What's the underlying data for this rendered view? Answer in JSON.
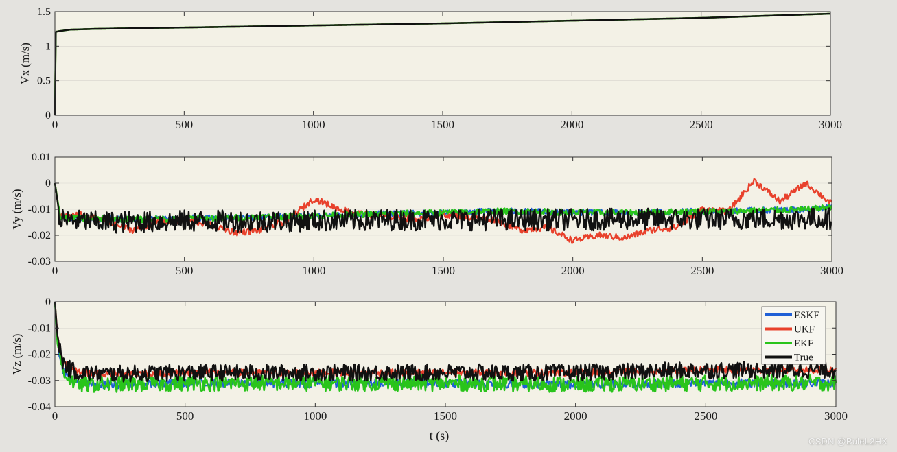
{
  "xlabel": "t (s)",
  "colors": {
    "background": "#e4e3df",
    "axes_face": "#f3f1e6",
    "axis": "#333333",
    "grid": "#d6d4cc",
    "ESKF": "#1f5fd6",
    "UKF": "#e8412c",
    "EKF": "#29c41b",
    "True": "#111111"
  },
  "watermark": "CSDN @BuleL2HX",
  "chart_data": [
    {
      "type": "line",
      "ylabel": "Vx (m/s)",
      "xlim": [
        0,
        3000
      ],
      "ylim": [
        0,
        1.5
      ],
      "xticks": [
        0,
        500,
        1000,
        1500,
        2000,
        2500,
        3000
      ],
      "xtick_labels": [
        "0",
        "500",
        "1000",
        "1500",
        "2000",
        "2500",
        "3000"
      ],
      "yticks": [
        0,
        0.5,
        1,
        1.5
      ],
      "ytick_labels": [
        "0",
        "0.5",
        "1",
        "1.5"
      ],
      "x": [
        0,
        2,
        5,
        20,
        60,
        150,
        300,
        500,
        1000,
        1500,
        2000,
        2500,
        3000
      ],
      "series": [
        {
          "name": "ESKF",
          "values": [
            0,
            1.2,
            1.21,
            1.22,
            1.24,
            1.25,
            1.26,
            1.27,
            1.3,
            1.33,
            1.37,
            1.41,
            1.47
          ]
        },
        {
          "name": "UKF",
          "values": [
            0,
            1.2,
            1.21,
            1.22,
            1.24,
            1.25,
            1.26,
            1.27,
            1.3,
            1.33,
            1.37,
            1.41,
            1.47
          ]
        },
        {
          "name": "EKF",
          "values": [
            0,
            1.2,
            1.21,
            1.22,
            1.24,
            1.25,
            1.26,
            1.27,
            1.3,
            1.33,
            1.37,
            1.41,
            1.47
          ]
        },
        {
          "name": "True",
          "values": [
            0,
            1.2,
            1.21,
            1.22,
            1.24,
            1.25,
            1.26,
            1.27,
            1.3,
            1.33,
            1.37,
            1.41,
            1.47
          ]
        }
      ]
    },
    {
      "type": "line",
      "ylabel": "Vy (m/s)",
      "xlim": [
        0,
        3000
      ],
      "ylim": [
        -0.03,
        0.01
      ],
      "xticks": [
        0,
        500,
        1000,
        1500,
        2000,
        2500,
        3000
      ],
      "xtick_labels": [
        "0",
        "500",
        "1000",
        "1500",
        "2000",
        "2500",
        "3000"
      ],
      "yticks": [
        -0.03,
        -0.02,
        -0.01,
        0,
        0.01
      ],
      "ytick_labels": [
        "-0.03",
        "-0.02",
        "-0.01",
        "0",
        "0.01"
      ],
      "x": [
        0,
        20,
        100,
        200,
        300,
        400,
        500,
        600,
        700,
        800,
        900,
        1000,
        1050,
        1100,
        1200,
        1300,
        1400,
        1500,
        1600,
        1700,
        1800,
        1900,
        2000,
        2100,
        2200,
        2300,
        2400,
        2500,
        2600,
        2700,
        2800,
        2900,
        3000
      ],
      "series": [
        {
          "name": "ESKF",
          "values": [
            0,
            -0.013,
            -0.0135,
            -0.0138,
            -0.014,
            -0.0138,
            -0.0135,
            -0.0135,
            -0.0133,
            -0.013,
            -0.0128,
            -0.0125,
            -0.0125,
            -0.0123,
            -0.012,
            -0.0118,
            -0.0115,
            -0.0113,
            -0.011,
            -0.0108,
            -0.0108,
            -0.011,
            -0.0112,
            -0.0113,
            -0.0113,
            -0.0112,
            -0.011,
            -0.0108,
            -0.0108,
            -0.0105,
            -0.0103,
            -0.0102,
            -0.0092
          ]
        },
        {
          "name": "UKF",
          "values": [
            0,
            -0.013,
            -0.012,
            -0.015,
            -0.018,
            -0.015,
            -0.014,
            -0.016,
            -0.019,
            -0.018,
            -0.014,
            -0.006,
            -0.008,
            -0.01,
            -0.012,
            -0.013,
            -0.014,
            -0.012,
            -0.013,
            -0.014,
            -0.018,
            -0.017,
            -0.022,
            -0.02,
            -0.021,
            -0.018,
            -0.017,
            -0.01,
            -0.011,
            0.001,
            -0.007,
            0.0,
            -0.008
          ]
        },
        {
          "name": "EKF",
          "values": [
            0,
            -0.013,
            -0.0135,
            -0.0138,
            -0.014,
            -0.0138,
            -0.0135,
            -0.0135,
            -0.0133,
            -0.013,
            -0.0128,
            -0.0125,
            -0.0125,
            -0.0123,
            -0.012,
            -0.0118,
            -0.0115,
            -0.0113,
            -0.011,
            -0.0108,
            -0.0108,
            -0.011,
            -0.0112,
            -0.0113,
            -0.0113,
            -0.0112,
            -0.011,
            -0.0108,
            -0.0108,
            -0.0105,
            -0.0103,
            -0.0102,
            -0.0092
          ]
        },
        {
          "name": "True",
          "values": [
            0,
            -0.014,
            -0.0145,
            -0.015,
            -0.0148,
            -0.0148,
            -0.0145,
            -0.0145,
            -0.0145,
            -0.0145,
            -0.0145,
            -0.0143,
            -0.0143,
            -0.0143,
            -0.0143,
            -0.014,
            -0.014,
            -0.014,
            -0.014,
            -0.014,
            -0.014,
            -0.014,
            -0.014,
            -0.014,
            -0.0138,
            -0.0138,
            -0.0138,
            -0.0138,
            -0.0138,
            -0.0136,
            -0.0136,
            -0.0136,
            -0.0136
          ]
        }
      ]
    },
    {
      "type": "line",
      "ylabel": "Vz (m/s)",
      "xlim": [
        0,
        3000
      ],
      "ylim": [
        -0.04,
        0
      ],
      "xticks": [
        0,
        500,
        1000,
        1500,
        2000,
        2500,
        3000
      ],
      "xtick_labels": [
        "0",
        "500",
        "1000",
        "1500",
        "2000",
        "2500",
        "3000"
      ],
      "yticks": [
        -0.04,
        -0.03,
        -0.02,
        -0.01,
        0
      ],
      "ytick_labels": [
        "-0.04",
        "-0.03",
        "-0.02",
        "-0.01",
        "0"
      ],
      "legend": {
        "entries": [
          "ESKF",
          "UKF",
          "EKF",
          "True"
        ],
        "placement": "top-right"
      },
      "x": [
        0,
        10,
        30,
        60,
        100,
        200,
        500,
        1000,
        1500,
        2000,
        2500,
        3000
      ],
      "series": [
        {
          "name": "ESKF",
          "values": [
            0,
            -0.016,
            -0.026,
            -0.03,
            -0.0315,
            -0.0315,
            -0.031,
            -0.031,
            -0.031,
            -0.0315,
            -0.031,
            -0.031
          ]
        },
        {
          "name": "UKF",
          "values": [
            0,
            -0.013,
            -0.023,
            -0.026,
            -0.027,
            -0.0275,
            -0.027,
            -0.027,
            -0.027,
            -0.027,
            -0.026,
            -0.026
          ]
        },
        {
          "name": "EKF",
          "values": [
            0,
            -0.016,
            -0.026,
            -0.03,
            -0.0315,
            -0.0315,
            -0.031,
            -0.031,
            -0.031,
            -0.0315,
            -0.031,
            -0.031
          ]
        },
        {
          "name": "True",
          "values": [
            0,
            -0.013,
            -0.023,
            -0.026,
            -0.027,
            -0.0275,
            -0.027,
            -0.027,
            -0.027,
            -0.027,
            -0.026,
            -0.026
          ]
        }
      ]
    }
  ]
}
